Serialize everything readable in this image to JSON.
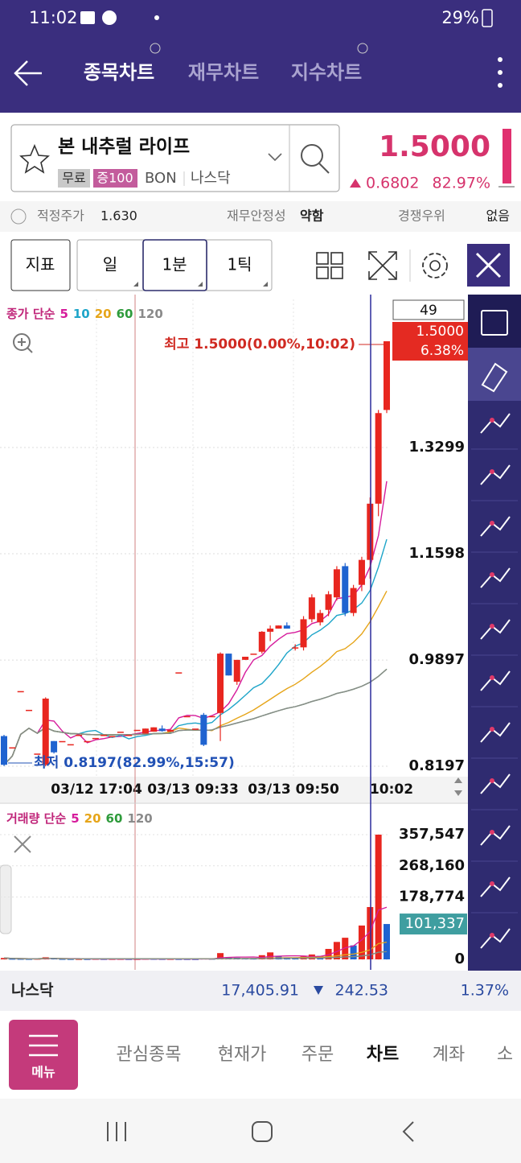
{
  "status_bar": {
    "time": "11:02",
    "battery": "29%"
  },
  "header": {
    "tabs": [
      "종목차트",
      "재무차트",
      "지수차트"
    ]
  },
  "stock": {
    "name": "본 내추럴 라이프",
    "tags": [
      "무료",
      "증100"
    ],
    "ticker": "BON",
    "market": "나스닥",
    "price": "1.5000",
    "change": "0.6802",
    "change_pct": "82.97%"
  },
  "info_row": [
    {
      "label": "적정주가",
      "value": "1.630"
    },
    {
      "label": "재무안정성",
      "value": "약함"
    },
    {
      "label": "경쟁우위",
      "value": "없음"
    }
  ],
  "toolbar": {
    "buttons": [
      "지표",
      "일",
      "1분",
      "1틱"
    ]
  },
  "chart_data": {
    "type": "candlestick",
    "legend_label": "종가 단순",
    "ma_periods": [
      5,
      10,
      20,
      60,
      120
    ],
    "ma_colors": [
      "#d61c9c",
      "#1ea5c9",
      "#e6a51a",
      "#2e9b3b",
      "#8a8a8a"
    ],
    "up_color": "#e8261f",
    "down_color": "#1f63d0",
    "top_box": "49",
    "candles": [
      [
        0.868,
        0.87,
        0.82,
        0.822
      ],
      [
        0.85,
        0.85,
        0.85,
        0.85
      ],
      [
        0.94,
        0.94,
        0.94,
        0.94
      ],
      [
        0.91,
        0.91,
        0.91,
        0.91
      ],
      [
        0.84,
        0.84,
        0.84,
        0.84
      ],
      [
        0.822,
        0.93,
        0.8197,
        0.928
      ],
      [
        0.86,
        0.86,
        0.84,
        0.842
      ],
      [
        0.86,
        0.86,
        0.86,
        0.86
      ],
      [
        0.855,
        0.855,
        0.855,
        0.855
      ],
      [
        0.87,
        0.87,
        0.87,
        0.87
      ],
      [
        0.86,
        0.86,
        0.86,
        0.86
      ],
      [
        0.865,
        0.865,
        0.865,
        0.865
      ],
      [
        0.87,
        0.87,
        0.87,
        0.87
      ],
      [
        0.868,
        0.868,
        0.868,
        0.868
      ],
      [
        0.875,
        0.875,
        0.875,
        0.875
      ],
      [
        0.87,
        0.87,
        0.87,
        0.87
      ],
      [
        0.878,
        0.878,
        0.878,
        0.878
      ],
      [
        0.872,
        0.88,
        0.872,
        0.88
      ],
      [
        0.875,
        0.882,
        0.875,
        0.882
      ],
      [
        0.88,
        0.885,
        0.875,
        0.876
      ],
      [
        0.875,
        0.878,
        0.875,
        0.878
      ],
      [
        0.97,
        0.97,
        0.97,
        0.97
      ],
      [
        0.9,
        0.9,
        0.9,
        0.9
      ],
      [
        0.88,
        0.88,
        0.88,
        0.88
      ],
      [
        0.902,
        0.905,
        0.852,
        0.854
      ],
      [
        0.9,
        0.9,
        0.9,
        0.9
      ],
      [
        0.905,
        1.002,
        0.86,
        1.0
      ],
      [
        1.0,
        1.0,
        0.965,
        0.965
      ],
      [
        0.955,
        0.99,
        0.95,
        0.99
      ],
      [
        0.99,
        0.995,
        0.99,
        0.995
      ],
      [
        1.0,
        1.0,
        1.0,
        1.0
      ],
      [
        1.003,
        1.036,
        1.0,
        1.035
      ],
      [
        1.035,
        1.045,
        1.02,
        1.04
      ],
      [
        1.04,
        1.045,
        1.04,
        1.045
      ],
      [
        1.045,
        1.05,
        1.04,
        1.04
      ],
      [
        1.01,
        1.015,
        1.005,
        1.01
      ],
      [
        1.01,
        1.06,
        1.005,
        1.055
      ],
      [
        1.055,
        1.095,
        1.05,
        1.09
      ],
      [
        1.05,
        1.07,
        1.045,
        1.065
      ],
      [
        1.07,
        1.1,
        1.06,
        1.095
      ],
      [
        1.09,
        1.14,
        1.085,
        1.135
      ],
      [
        1.14,
        1.145,
        1.06,
        1.065
      ],
      [
        1.065,
        1.11,
        1.06,
        1.105
      ],
      [
        1.11,
        1.155,
        1.1,
        1.15
      ],
      [
        1.15,
        1.25,
        1.12,
        1.24
      ],
      [
        1.24,
        1.39,
        1.22,
        1.385
      ],
      [
        1.39,
        1.5,
        1.385,
        1.5
      ]
    ],
    "ylim": [
      0.803,
      1.567
    ],
    "yticks": [
      0.8197,
      0.9897,
      1.1598,
      1.3299
    ],
    "current_price": {
      "value": 1.5,
      "label": "1.5000"
    },
    "current_pct": "6.38%",
    "high_annotation": "최고 1.5000(0.00%,10:02)",
    "low_annotation": "최저 0.8197(82.99%,15:57)",
    "x_labels": [
      "03/12 17:04",
      "03/13 09:33",
      "03/13 09:50",
      "10:02"
    ],
    "grid": true,
    "volume": {
      "legend_label": "거래량 단순",
      "ma_periods": [
        5,
        20,
        60,
        120
      ],
      "ma_colors": [
        "#d61c9c",
        "#e6a51a",
        "#2e9b3b",
        "#8a8a8a"
      ],
      "values": [
        4000,
        1500,
        1200,
        1000,
        1500,
        6000,
        2500,
        1000,
        800,
        900,
        700,
        1200,
        800,
        900,
        1000,
        700,
        800,
        1500,
        1200,
        900,
        1000,
        800,
        700,
        600,
        2500,
        1500,
        18000,
        6000,
        5000,
        3000,
        2000,
        12000,
        20000,
        9000,
        6000,
        5000,
        8000,
        14000,
        10000,
        30000,
        50000,
        62000,
        40000,
        97000,
        150000,
        357547,
        101337
      ],
      "ylim": [
        -30000,
        438300
      ],
      "yticks": [
        0,
        {
          "value": 178774,
          "label": "178,774"
        },
        {
          "value": 268160,
          "label": "268,160"
        },
        {
          "value": 357547,
          "label": "357,547"
        }
      ],
      "current": {
        "value": 101337,
        "label": "101,337"
      }
    }
  },
  "index_bar": {
    "name": "나스닥",
    "value": "17,405.91",
    "change": "242.53",
    "change_pct": "1.37%"
  },
  "nav": {
    "menu": "메뉴",
    "items": [
      "관심종목",
      "현재가",
      "주문",
      "차트",
      "계좌",
      "소"
    ]
  }
}
